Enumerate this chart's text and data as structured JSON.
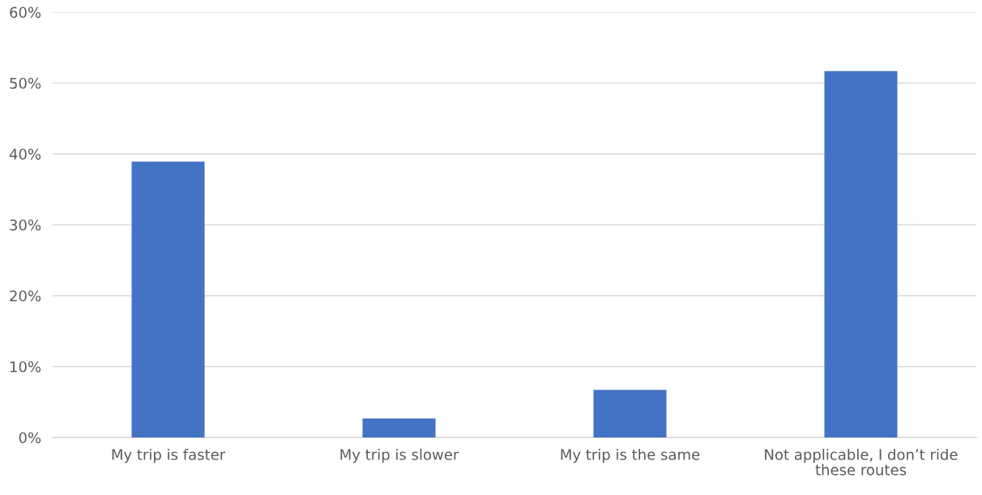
{
  "chart_data": {
    "type": "bar",
    "categories": [
      "My trip is faster",
      "My trip is slower",
      "My trip is the same",
      "Not applicable, I don’t ride these routes"
    ],
    "values": [
      38.9,
      2.7,
      6.7,
      51.7
    ],
    "color": "#4472c4",
    "ylim": [
      0,
      60
    ],
    "yticks": [
      {
        "value": 0,
        "label": "0%"
      },
      {
        "value": 10,
        "label": "10%"
      },
      {
        "value": 20,
        "label": "20%"
      },
      {
        "value": 30,
        "label": "30%"
      },
      {
        "value": 40,
        "label": "40%"
      },
      {
        "value": 50,
        "label": "50%"
      },
      {
        "value": 60,
        "label": "60%"
      }
    ],
    "grid": "y"
  }
}
